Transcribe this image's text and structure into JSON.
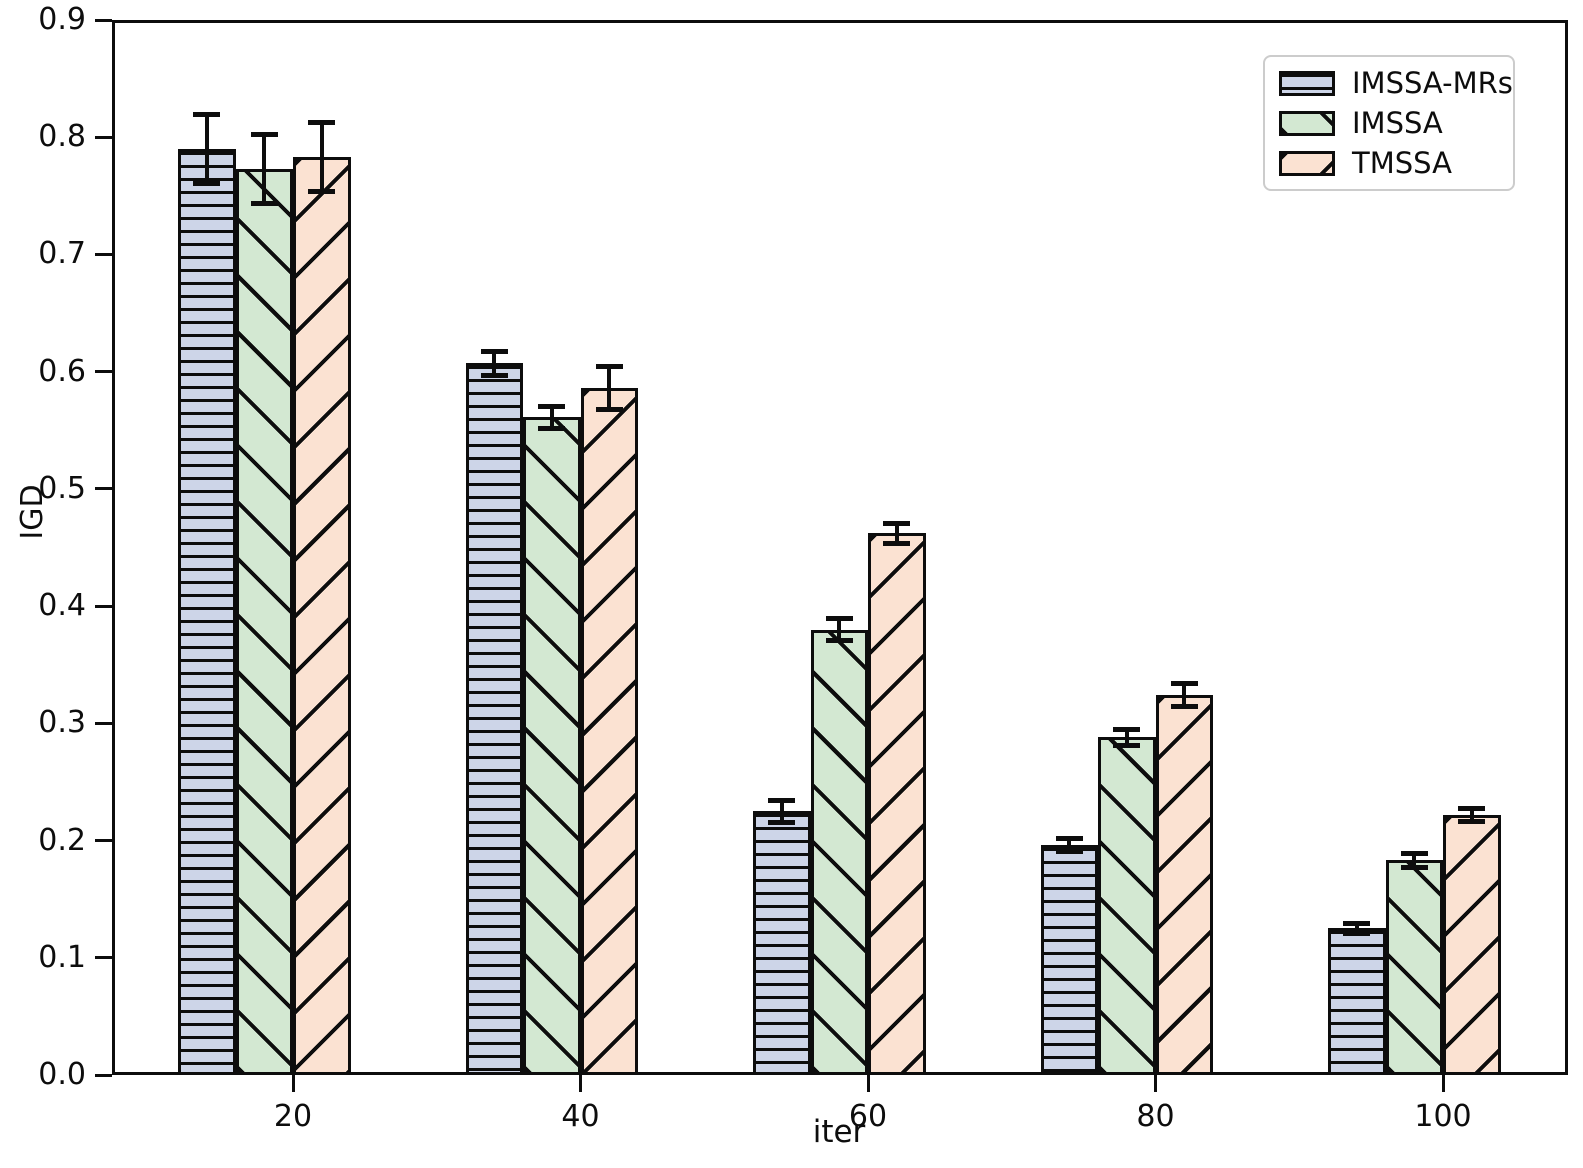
{
  "chart_data": {
    "type": "bar",
    "title": "",
    "xlabel": "iter",
    "ylabel": "IGD",
    "categories": [
      "20",
      "40",
      "60",
      "80",
      "100"
    ],
    "yticks": [
      "0.0",
      "0.1",
      "0.2",
      "0.3",
      "0.4",
      "0.5",
      "0.6",
      "0.7",
      "0.8",
      "0.9"
    ],
    "ylim": [
      0.0,
      0.9
    ],
    "grid": false,
    "legend_position": "upper right",
    "bar_edge_color": "#0d0d0d",
    "error_bar_color": "#0d0d0d",
    "series": [
      {
        "name": "IMSSA-MRs",
        "color": "#cdd5e8",
        "hatch": "horizontal",
        "values": [
          0.79,
          0.607,
          0.225,
          0.196,
          0.125
        ],
        "errors": [
          0.03,
          0.011,
          0.01,
          0.006,
          0.005
        ]
      },
      {
        "name": "IMSSA",
        "color": "#d3e8d2",
        "hatch": "backslash",
        "values": [
          0.773,
          0.561,
          0.38,
          0.288,
          0.183
        ],
        "errors": [
          0.03,
          0.01,
          0.01,
          0.007,
          0.006
        ]
      },
      {
        "name": "TMSSA",
        "color": "#fbe2d2",
        "hatch": "slash",
        "values": [
          0.783,
          0.586,
          0.462,
          0.324,
          0.222
        ],
        "errors": [
          0.03,
          0.019,
          0.009,
          0.01,
          0.006
        ]
      }
    ]
  }
}
